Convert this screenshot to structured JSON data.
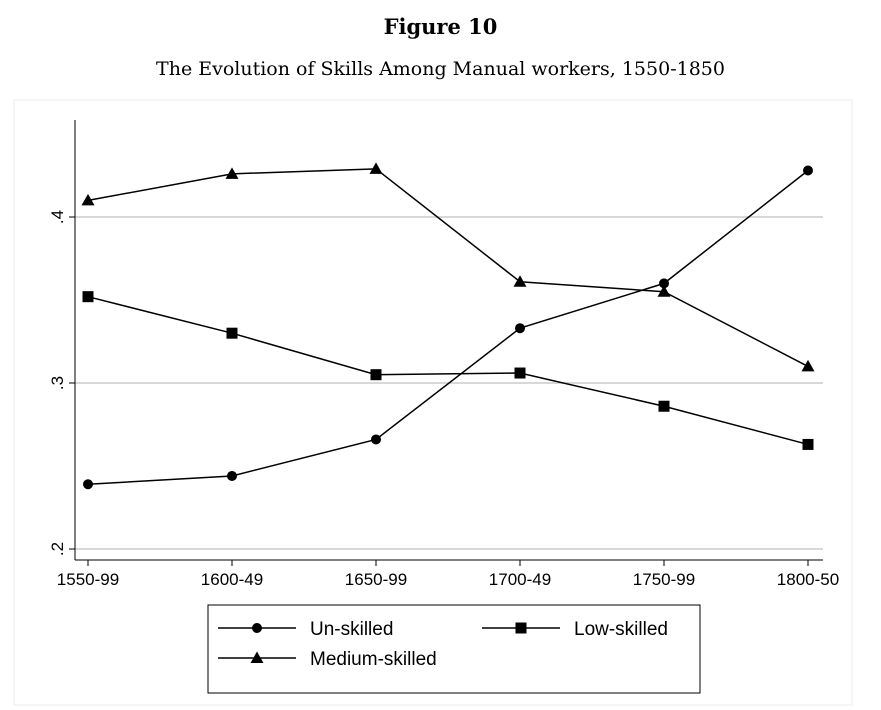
{
  "chart_data": {
    "type": "line",
    "title": "Figure 10",
    "subtitle": "The Evolution of Skills Among Manual workers, 1550-1850",
    "xlabel": "",
    "ylabel": "",
    "categories": [
      "1550-99",
      "1600-49",
      "1650-99",
      "1700-49",
      "1750-99",
      "1800-50"
    ],
    "y_ticks": [
      ".2",
      ".3",
      ".4"
    ],
    "y_tick_values": [
      0.2,
      0.3,
      0.4
    ],
    "ylim": [
      0.19,
      0.458
    ],
    "grid": true,
    "legend_position": "bottom",
    "series": [
      {
        "name": "Un-skilled",
        "marker": "circle",
        "values": [
          0.239,
          0.244,
          0.266,
          0.333,
          0.36,
          0.428
        ]
      },
      {
        "name": "Low-skilled",
        "marker": "square",
        "values": [
          0.352,
          0.33,
          0.305,
          0.306,
          0.286,
          0.263
        ]
      },
      {
        "name": "Medium-skilled",
        "marker": "triangle",
        "values": [
          0.41,
          0.426,
          0.429,
          0.361,
          0.355,
          0.31
        ]
      }
    ]
  }
}
